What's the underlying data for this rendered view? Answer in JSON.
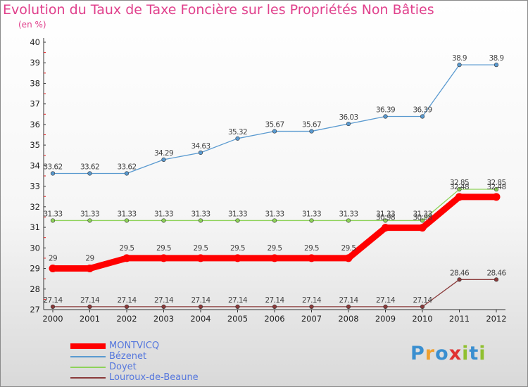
{
  "title": "Evolution du Taux de Taxe Foncière sur les Propriétés Non Bâties",
  "unit": "(en %)",
  "brand": {
    "text": "Proxiti",
    "letter_colors": [
      "#3a8fd0",
      "#f0a030",
      "#3a8fd0",
      "#e03030",
      "#90c030",
      "#3a8fd0",
      "#90c030"
    ]
  },
  "chart_data": {
    "type": "line",
    "title": "Evolution du Taux de Taxe Foncière sur les Propriétés Non Bâties",
    "ylabel": "(en %)",
    "xlabel": "",
    "categories": [
      "2000",
      "2001",
      "2002",
      "2003",
      "2004",
      "2005",
      "2006",
      "2007",
      "2008",
      "2009",
      "2010",
      "2011",
      "2012"
    ],
    "ylim": [
      27,
      40
    ],
    "yticks": [
      "27",
      "28",
      "29",
      "30",
      "31",
      "32",
      "33",
      "34",
      "35",
      "36",
      "37",
      "38",
      "39",
      "40"
    ],
    "series": [
      {
        "name": "MONTVICQ",
        "color": "#ff0000",
        "emphasis": true,
        "values": [
          29,
          29,
          29.5,
          29.5,
          29.5,
          29.5,
          29.5,
          29.5,
          29.5,
          30.98,
          30.98,
          32.48,
          32.48
        ],
        "labels": [
          "29",
          "29",
          "29.5",
          "29.5",
          "29.5",
          "29.5",
          "29.5",
          "29.5",
          "29.5",
          "30.98",
          "30.98",
          "32.48",
          "32.48"
        ]
      },
      {
        "name": "Bézenet",
        "color": "#5a9ad0",
        "emphasis": false,
        "values": [
          33.62,
          33.62,
          33.62,
          34.29,
          34.63,
          35.32,
          35.67,
          35.67,
          36.03,
          36.39,
          36.39,
          38.9,
          38.9
        ],
        "labels": [
          "33.62",
          "33.62",
          "33.62",
          "34.29",
          "34.63",
          "35.32",
          "35.67",
          "35.67",
          "36.03",
          "36.39",
          "36.39",
          "38.9",
          "38.9"
        ]
      },
      {
        "name": "Doyet",
        "color": "#8ed25a",
        "emphasis": false,
        "values": [
          31.33,
          31.33,
          31.33,
          31.33,
          31.33,
          31.33,
          31.33,
          31.33,
          31.33,
          31.33,
          31.33,
          32.85,
          32.85
        ],
        "labels": [
          "31.33",
          "31.33",
          "31.33",
          "31.33",
          "31.33",
          "31.33",
          "31.33",
          "31.33",
          "31.33",
          "31.33",
          "31.33",
          "32.85",
          "32.85"
        ]
      },
      {
        "name": "Louroux-de-Beaune",
        "color": "#8a3a3a",
        "emphasis": false,
        "values": [
          27.14,
          27.14,
          27.14,
          27.14,
          27.14,
          27.14,
          27.14,
          27.14,
          27.14,
          27.14,
          27.14,
          28.46,
          28.46
        ],
        "labels": [
          "27.14",
          "27.14",
          "27.14",
          "27.14",
          "27.14",
          "27.14",
          "27.14",
          "27.14",
          "27.14",
          "27.14",
          "27.14",
          "28.46",
          "28.46"
        ]
      }
    ],
    "grid": false,
    "legend": "bottom-left"
  }
}
